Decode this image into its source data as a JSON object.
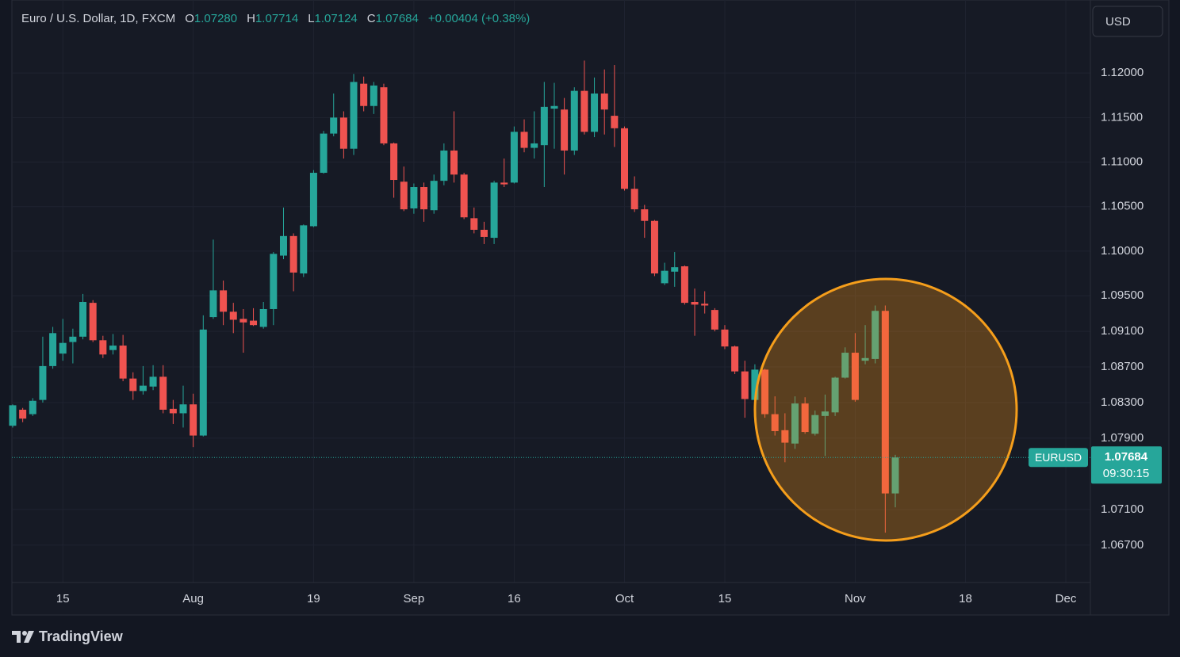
{
  "header": {
    "title": "Euro / U.S. Dollar, 1D, FXCM",
    "ohlc": [
      {
        "label": "O",
        "value": "1.07280"
      },
      {
        "label": "H",
        "value": "1.07714"
      },
      {
        "label": "L",
        "value": "1.07124"
      },
      {
        "label": "C",
        "value": "1.07684"
      }
    ],
    "change": "+0.00404 (+0.38%)"
  },
  "currency": "USD",
  "logo": "TradingView",
  "chart_data": {
    "type": "candlestick",
    "categories": [
      null,
      null,
      null,
      null,
      null,
      "15",
      null,
      null,
      null,
      null,
      null,
      null,
      null,
      null,
      null,
      null,
      null,
      null,
      "Aug",
      null,
      null,
      null,
      null,
      null,
      null,
      null,
      null,
      null,
      null,
      null,
      "19",
      null,
      null,
      null,
      null,
      null,
      null,
      null,
      null,
      null,
      "Sep",
      null,
      null,
      null,
      null,
      null,
      null,
      null,
      null,
      null,
      "16",
      null,
      null,
      null,
      null,
      null,
      null,
      null,
      null,
      null,
      null,
      "Oct",
      null,
      null,
      null,
      null,
      null,
      null,
      null,
      null,
      null,
      "15",
      null,
      null,
      null,
      null,
      null,
      null,
      null,
      null,
      null,
      null,
      null,
      null,
      "Nov",
      null,
      null,
      null,
      null,
      null,
      null,
      null,
      null,
      null,
      null,
      "18",
      null,
      null,
      null,
      null,
      null,
      null,
      null,
      null,
      null,
      "Dec"
    ],
    "series": [
      {
        "name": "EURUSD",
        "up_color": "#26a69a",
        "down_color": "#ef5350",
        "open": [
          1.0804,
          1.0822,
          1.0817,
          1.0833,
          1.0871,
          1.0885,
          1.0898,
          1.0904,
          1.0942,
          1.09,
          1.0889,
          1.0894,
          1.0857,
          1.0843,
          1.0848,
          1.0859,
          1.0823,
          1.0818,
          1.0828,
          1.0793,
          1.0926,
          1.0956,
          1.0932,
          1.0924,
          1.0922,
          1.0915,
          1.0935,
          1.0995,
          1.1017,
          1.0975,
          1.1028,
          1.1088,
          1.1132,
          1.115,
          1.1115,
          1.1188,
          1.1163,
          1.1184,
          1.1121,
          1.1078,
          1.1048,
          1.1072,
          1.1046,
          1.1079,
          1.1113,
          1.1086,
          1.1037,
          1.1024,
          1.1015,
          1.1077,
          1.1077,
          1.1134,
          1.1116,
          1.1119,
          1.116,
          1.1159,
          1.1113,
          1.118,
          1.1134,
          1.1177,
          1.1152,
          1.1138,
          1.107,
          1.1047,
          1.1034,
          1.0964,
          1.0977,
          1.0983,
          1.0943,
          1.0941,
          1.0934,
          1.0912,
          1.0893,
          1.0865,
          1.0833,
          1.0867,
          1.0817,
          1.0799,
          1.0784,
          1.0829,
          1.0795,
          1.0815,
          1.0819,
          1.0858,
          1.0886,
          1.0877,
          1.0879,
          1.0933,
          1.0728,
          null,
          null,
          null,
          null,
          null,
          null,
          null,
          null,
          null,
          null,
          null,
          null,
          null,
          null,
          null,
          null,
          null
        ],
        "high": [
          1.0828,
          1.0824,
          1.0835,
          1.0904,
          1.0915,
          1.0924,
          1.0913,
          1.0952,
          1.0945,
          1.0905,
          1.0907,
          1.0906,
          1.0864,
          1.0871,
          1.0872,
          1.0872,
          1.0833,
          1.0849,
          1.084,
          1.0928,
          1.1013,
          1.0967,
          1.0942,
          1.0935,
          1.0936,
          1.0943,
          1.0999,
          1.1049,
          1.102,
          1.103,
          1.1091,
          1.1135,
          1.1177,
          1.1157,
          1.1199,
          1.1196,
          1.119,
          1.1188,
          1.1122,
          1.1095,
          1.1076,
          1.1077,
          1.1086,
          1.1121,
          1.1157,
          1.1088,
          1.1049,
          1.1033,
          1.1079,
          1.1104,
          1.114,
          1.1148,
          1.1157,
          1.119,
          1.1189,
          1.1172,
          1.1184,
          1.1214,
          1.1195,
          1.1204,
          1.1209,
          1.114,
          1.1084,
          1.1052,
          1.1035,
          1.0987,
          1.0999,
          1.0984,
          1.0958,
          1.0955,
          1.0936,
          1.0917,
          1.0894,
          1.0877,
          1.0873,
          1.0868,
          1.0837,
          1.0818,
          1.0837,
          1.0836,
          1.0821,
          1.0839,
          1.0859,
          1.0892,
          1.0908,
          1.0917,
          1.0939,
          1.0939,
          1.07714,
          null,
          null,
          null,
          null,
          null,
          null,
          null,
          null,
          null,
          null,
          null,
          null,
          null,
          null,
          null,
          null,
          null
        ],
        "low": [
          1.0802,
          1.0808,
          1.0815,
          1.083,
          1.0868,
          1.0877,
          1.0874,
          1.0901,
          1.0898,
          1.088,
          1.0884,
          1.0854,
          1.0833,
          1.0839,
          1.0844,
          1.0818,
          1.0806,
          1.0802,
          1.078,
          1.0792,
          1.0924,
          1.0917,
          1.0908,
          1.0886,
          1.0916,
          1.0913,
          1.0917,
          1.0991,
          1.0955,
          1.0971,
          1.1027,
          1.1087,
          1.1129,
          1.1104,
          1.1108,
          1.1157,
          1.1154,
          1.1119,
          1.106,
          1.1045,
          1.1042,
          1.1033,
          1.1042,
          1.1074,
          1.1077,
          1.1036,
          1.102,
          1.1008,
          1.1008,
          1.1072,
          1.1076,
          1.1111,
          1.1104,
          1.1072,
          1.1115,
          1.1086,
          1.1108,
          1.1131,
          1.1128,
          1.1131,
          1.1117,
          1.1068,
          1.1044,
          1.1015,
          1.0972,
          1.0962,
          1.096,
          1.094,
          1.0905,
          1.093,
          1.091,
          1.089,
          1.0862,
          1.0813,
          1.0828,
          1.0813,
          1.0793,
          1.0763,
          1.0778,
          1.0795,
          1.0793,
          1.077,
          1.0815,
          1.0857,
          1.0831,
          1.0873,
          1.0874,
          1.0684,
          1.07124,
          null,
          null,
          null,
          null,
          null,
          null,
          null,
          null,
          null,
          null,
          null,
          null,
          null,
          null,
          null,
          null,
          null
        ],
        "close": [
          1.0827,
          1.0812,
          1.0832,
          1.0871,
          1.0908,
          1.0897,
          1.0904,
          1.0943,
          1.09,
          1.0884,
          1.0894,
          1.0857,
          1.0843,
          1.0849,
          1.0859,
          1.0822,
          1.0818,
          1.0828,
          1.0793,
          1.0912,
          1.0956,
          1.0932,
          1.0923,
          1.092,
          1.0917,
          1.0935,
          1.0997,
          1.1017,
          1.0976,
          1.1029,
          1.1088,
          1.1132,
          1.115,
          1.1115,
          1.119,
          1.1163,
          1.1186,
          1.1121,
          1.108,
          1.1047,
          1.1072,
          1.1047,
          1.1079,
          1.1113,
          1.1086,
          1.1038,
          1.1024,
          1.1016,
          1.1077,
          1.1075,
          1.1134,
          1.1116,
          1.1121,
          1.1162,
          1.1163,
          1.1113,
          1.118,
          1.1134,
          1.1177,
          1.1159,
          1.1138,
          1.107,
          1.1047,
          1.1034,
          1.0975,
          1.0978,
          1.0982,
          1.0942,
          1.094,
          1.0939,
          1.0912,
          1.0893,
          1.0865,
          1.0834,
          1.0867,
          1.0817,
          1.0798,
          1.0785,
          1.0829,
          1.0797,
          1.0816,
          1.082,
          1.0858,
          1.0886,
          1.0833,
          1.088,
          1.0933,
          1.0728,
          1.07684,
          null,
          null,
          null,
          null,
          null,
          null,
          null,
          null,
          null,
          null,
          null,
          null,
          null,
          null,
          null,
          null,
          null
        ]
      }
    ],
    "ylim": [
      1.0628,
      1.1282
    ],
    "yticks": [
      {
        "value": 1.12,
        "label": "1.12000"
      },
      {
        "value": 1.115,
        "label": "1.11500"
      },
      {
        "value": 1.11,
        "label": "1.11000"
      },
      {
        "value": 1.105,
        "label": "1.10500"
      },
      {
        "value": 1.1,
        "label": "1.10000"
      },
      {
        "value": 1.095,
        "label": "1.09500"
      },
      {
        "value": 1.091,
        "label": "1.09100"
      },
      {
        "value": 1.087,
        "label": "1.08700"
      },
      {
        "value": 1.083,
        "label": "1.08300"
      },
      {
        "value": 1.079,
        "label": "1.07900"
      },
      {
        "value": 1.071,
        "label": "1.07100"
      },
      {
        "value": 1.067,
        "label": "1.06700"
      }
    ],
    "grid": true,
    "last_price": {
      "value": 1.07684,
      "label": "1.07684"
    },
    "countdown": "09:30:15"
  }
}
